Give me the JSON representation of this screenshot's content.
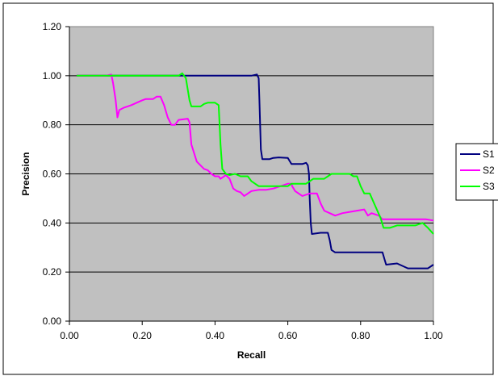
{
  "chart_data": {
    "type": "line",
    "title": "",
    "xlabel": "Recall",
    "ylabel": "Precision",
    "xlim": [
      0,
      1
    ],
    "ylim": [
      0,
      1.2
    ],
    "x_ticks": [
      "0.00",
      "0.20",
      "0.40",
      "0.60",
      "0.80",
      "1.00"
    ],
    "y_ticks": [
      "0.00",
      "0.20",
      "0.40",
      "0.60",
      "0.80",
      "1.00",
      "1.20"
    ],
    "grid": "horizontal",
    "background": "#c0c0c0",
    "legend_position": "right",
    "series": [
      {
        "name": "S1",
        "color": "#000080",
        "points": [
          [
            0.02,
            1.0
          ],
          [
            0.5,
            1.0
          ],
          [
            0.515,
            1.005
          ],
          [
            0.52,
            0.99
          ],
          [
            0.522,
            0.9
          ],
          [
            0.524,
            0.8
          ],
          [
            0.526,
            0.7
          ],
          [
            0.53,
            0.66
          ],
          [
            0.55,
            0.66
          ],
          [
            0.56,
            0.665
          ],
          [
            0.575,
            0.667
          ],
          [
            0.6,
            0.665
          ],
          [
            0.61,
            0.64
          ],
          [
            0.64,
            0.64
          ],
          [
            0.65,
            0.645
          ],
          [
            0.655,
            0.635
          ],
          [
            0.658,
            0.6
          ],
          [
            0.66,
            0.5
          ],
          [
            0.663,
            0.4
          ],
          [
            0.666,
            0.355
          ],
          [
            0.69,
            0.36
          ],
          [
            0.71,
            0.36
          ],
          [
            0.715,
            0.33
          ],
          [
            0.72,
            0.29
          ],
          [
            0.73,
            0.28
          ],
          [
            0.86,
            0.28
          ],
          [
            0.866,
            0.25
          ],
          [
            0.87,
            0.23
          ],
          [
            0.9,
            0.235
          ],
          [
            0.93,
            0.215
          ],
          [
            0.985,
            0.215
          ],
          [
            1.0,
            0.23
          ]
        ]
      },
      {
        "name": "S2",
        "color": "#ff00ff",
        "points": [
          [
            0.02,
            1.0
          ],
          [
            0.1,
            1.0
          ],
          [
            0.115,
            1.005
          ],
          [
            0.12,
            0.97
          ],
          [
            0.127,
            0.9
          ],
          [
            0.132,
            0.83
          ],
          [
            0.137,
            0.86
          ],
          [
            0.15,
            0.87
          ],
          [
            0.17,
            0.88
          ],
          [
            0.185,
            0.89
          ],
          [
            0.2,
            0.9
          ],
          [
            0.21,
            0.905
          ],
          [
            0.23,
            0.905
          ],
          [
            0.24,
            0.915
          ],
          [
            0.25,
            0.915
          ],
          [
            0.26,
            0.88
          ],
          [
            0.27,
            0.83
          ],
          [
            0.28,
            0.8
          ],
          [
            0.29,
            0.8
          ],
          [
            0.3,
            0.82
          ],
          [
            0.325,
            0.825
          ],
          [
            0.33,
            0.81
          ],
          [
            0.335,
            0.72
          ],
          [
            0.35,
            0.65
          ],
          [
            0.37,
            0.62
          ],
          [
            0.38,
            0.615
          ],
          [
            0.39,
            0.6
          ],
          [
            0.4,
            0.59
          ],
          [
            0.41,
            0.59
          ],
          [
            0.415,
            0.58
          ],
          [
            0.43,
            0.595
          ],
          [
            0.44,
            0.58
          ],
          [
            0.45,
            0.54
          ],
          [
            0.46,
            0.53
          ],
          [
            0.47,
            0.525
          ],
          [
            0.48,
            0.51
          ],
          [
            0.5,
            0.53
          ],
          [
            0.52,
            0.535
          ],
          [
            0.54,
            0.535
          ],
          [
            0.56,
            0.54
          ],
          [
            0.58,
            0.55
          ],
          [
            0.6,
            0.56
          ],
          [
            0.61,
            0.56
          ],
          [
            0.612,
            0.55
          ],
          [
            0.62,
            0.53
          ],
          [
            0.64,
            0.51
          ],
          [
            0.66,
            0.52
          ],
          [
            0.68,
            0.52
          ],
          [
            0.69,
            0.48
          ],
          [
            0.7,
            0.45
          ],
          [
            0.715,
            0.44
          ],
          [
            0.73,
            0.43
          ],
          [
            0.75,
            0.44
          ],
          [
            0.77,
            0.445
          ],
          [
            0.79,
            0.45
          ],
          [
            0.81,
            0.455
          ],
          [
            0.82,
            0.43
          ],
          [
            0.83,
            0.44
          ],
          [
            0.85,
            0.43
          ],
          [
            0.86,
            0.415
          ],
          [
            0.98,
            0.415
          ],
          [
            1.0,
            0.41
          ]
        ]
      },
      {
        "name": "S3",
        "color": "#00ff00",
        "points": [
          [
            0.02,
            1.0
          ],
          [
            0.3,
            1.0
          ],
          [
            0.31,
            1.01
          ],
          [
            0.32,
            0.99
          ],
          [
            0.33,
            0.9
          ],
          [
            0.335,
            0.875
          ],
          [
            0.36,
            0.875
          ],
          [
            0.37,
            0.885
          ],
          [
            0.38,
            0.89
          ],
          [
            0.4,
            0.89
          ],
          [
            0.41,
            0.88
          ],
          [
            0.412,
            0.82
          ],
          [
            0.415,
            0.72
          ],
          [
            0.42,
            0.62
          ],
          [
            0.43,
            0.6
          ],
          [
            0.44,
            0.595
          ],
          [
            0.455,
            0.6
          ],
          [
            0.47,
            0.59
          ],
          [
            0.48,
            0.59
          ],
          [
            0.49,
            0.59
          ],
          [
            0.5,
            0.57
          ],
          [
            0.52,
            0.55
          ],
          [
            0.6,
            0.55
          ],
          [
            0.61,
            0.56
          ],
          [
            0.65,
            0.56
          ],
          [
            0.67,
            0.58
          ],
          [
            0.7,
            0.58
          ],
          [
            0.72,
            0.6
          ],
          [
            0.76,
            0.6
          ],
          [
            0.77,
            0.6
          ],
          [
            0.78,
            0.59
          ],
          [
            0.79,
            0.59
          ],
          [
            0.8,
            0.55
          ],
          [
            0.81,
            0.52
          ],
          [
            0.825,
            0.52
          ],
          [
            0.84,
            0.47
          ],
          [
            0.855,
            0.42
          ],
          [
            0.863,
            0.38
          ],
          [
            0.88,
            0.38
          ],
          [
            0.9,
            0.39
          ],
          [
            0.95,
            0.39
          ],
          [
            0.97,
            0.4
          ],
          [
            0.985,
            0.38
          ],
          [
            1.0,
            0.355
          ]
        ]
      }
    ]
  }
}
